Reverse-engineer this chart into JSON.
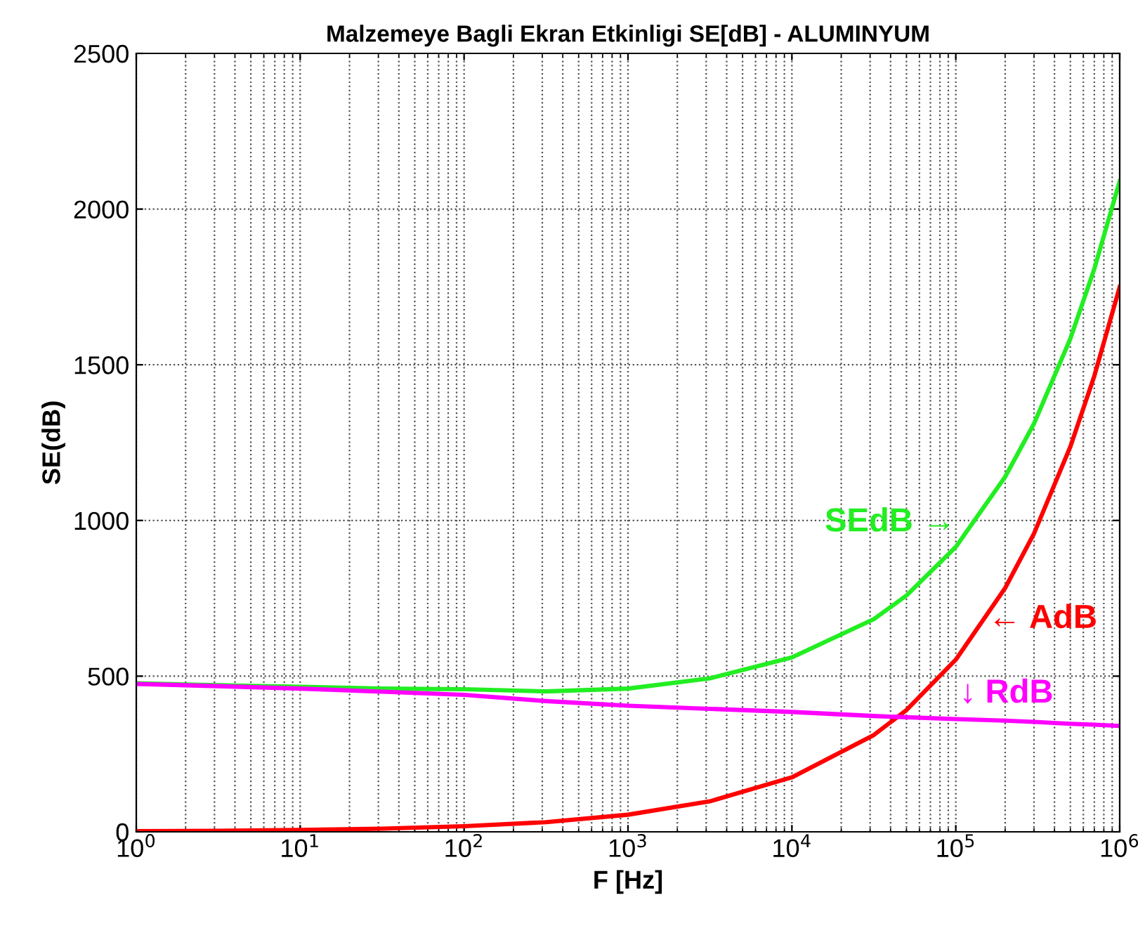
{
  "chart_data": {
    "type": "line",
    "title": "Malzemeye Bagli Ekran Etkinligi SE[dB] - ALUMINYUM",
    "xlabel": "F [Hz]",
    "ylabel": "SE(dB)",
    "log": "x",
    "grid": true,
    "x": [
      1,
      3.16,
      10,
      31.6,
      100,
      316,
      1000,
      3162,
      10000,
      31620,
      50000,
      100000,
      200000,
      300000,
      500000,
      700000,
      1000000
    ],
    "series": [
      {
        "color": "#22ee22",
        "values": [
          477,
          471,
          466,
          460,
          458,
          451,
          460,
          493,
          560,
          683,
          759,
          915,
          1140,
          1311,
          1584,
          1808,
          2090
        ]
      },
      {
        "color": "#ff0000",
        "values": [
          2,
          3,
          6,
          10,
          18,
          31,
          55,
          98,
          175,
          311,
          391,
          553,
          783,
          958,
          1237,
          1464,
          1750
        ]
      },
      {
        "color": "#ff00ff",
        "values": [
          475,
          468,
          460,
          450,
          440,
          420,
          405,
          395,
          385,
          372,
          368,
          362,
          357,
          353,
          347,
          344,
          340
        ]
      }
    ],
    "annotations": [
      "SEdB →",
      "← AdB",
      "↓ RdB"
    ],
    "xlim": [
      1,
      1000000
    ],
    "ylim": [
      0,
      2500
    ],
    "xticks": [
      {
        "value": 1,
        "label": "10$^{0}$"
      },
      {
        "value": 10,
        "label": "10$^{1}$"
      },
      {
        "value": 100,
        "label": "10$^{2}$"
      },
      {
        "value": 1000,
        "label": "10$^{3}$"
      },
      {
        "value": 10000,
        "label": "10$^{4}$"
      },
      {
        "value": 100000,
        "label": "10$^{5}$"
      },
      {
        "value": 1000000,
        "label": "10$^{6}$"
      }
    ],
    "yticks": [
      0,
      500,
      1000,
      1500,
      2000,
      2500
    ]
  }
}
